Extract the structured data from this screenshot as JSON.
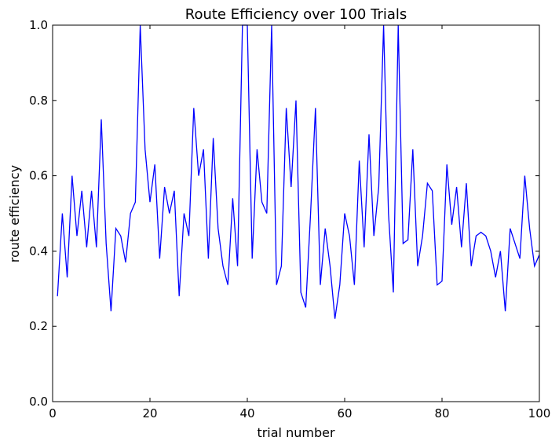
{
  "chart_data": {
    "type": "line",
    "title": "Route Efficiency over 100 Trials",
    "xlabel": "trial number",
    "ylabel": "route efficiency",
    "xlim": [
      0,
      100
    ],
    "ylim": [
      0.0,
      1.0
    ],
    "xticks": [
      0,
      20,
      40,
      60,
      80,
      100
    ],
    "yticks": [
      0.0,
      0.2,
      0.4,
      0.6,
      0.8,
      1.0
    ],
    "xtick_labels": [
      "0",
      "20",
      "40",
      "60",
      "80",
      "100"
    ],
    "ytick_labels": [
      "0.0",
      "0.2",
      "0.4",
      "0.6",
      "0.8",
      "1.0"
    ],
    "grid": false,
    "line_color": "#0000ff",
    "x": [
      1,
      2,
      3,
      4,
      5,
      6,
      7,
      8,
      9,
      10,
      11,
      12,
      13,
      14,
      15,
      16,
      17,
      18,
      19,
      20,
      21,
      22,
      23,
      24,
      25,
      26,
      27,
      28,
      29,
      30,
      31,
      32,
      33,
      34,
      35,
      36,
      37,
      38,
      39,
      40,
      41,
      42,
      43,
      44,
      45,
      46,
      47,
      48,
      49,
      50,
      51,
      52,
      53,
      54,
      55,
      56,
      57,
      58,
      59,
      60,
      61,
      62,
      63,
      64,
      65,
      66,
      67,
      68,
      69,
      70,
      71,
      72,
      73,
      74,
      75,
      76,
      77,
      78,
      79,
      80,
      81,
      82,
      83,
      84,
      85,
      86,
      87,
      88,
      89,
      90,
      91,
      92,
      93,
      94,
      95,
      96,
      97,
      98,
      99,
      100
    ],
    "y": [
      0.28,
      0.5,
      0.33,
      0.6,
      0.44,
      0.56,
      0.41,
      0.56,
      0.41,
      0.75,
      0.42,
      0.24,
      0.46,
      0.44,
      0.37,
      0.5,
      0.53,
      1.0,
      0.67,
      0.53,
      0.63,
      0.38,
      0.57,
      0.5,
      0.56,
      0.28,
      0.5,
      0.44,
      0.78,
      0.6,
      0.67,
      0.38,
      0.7,
      0.46,
      0.36,
      0.31,
      0.54,
      0.36,
      1.0,
      1.0,
      0.38,
      0.67,
      0.53,
      0.5,
      1.0,
      0.31,
      0.36,
      0.78,
      0.57,
      0.8,
      0.29,
      0.25,
      0.5,
      0.78,
      0.31,
      0.46,
      0.36,
      0.22,
      0.31,
      0.5,
      0.44,
      0.31,
      0.64,
      0.41,
      0.71,
      0.44,
      0.57,
      1.0,
      0.5,
      0.29,
      1.0,
      0.42,
      0.43,
      0.67,
      0.36,
      0.44,
      0.58,
      0.56,
      0.31,
      0.32,
      0.63,
      0.47,
      0.57,
      0.41,
      0.58,
      0.36,
      0.44,
      0.45,
      0.44,
      0.4,
      0.33,
      0.4,
      0.24,
      0.46,
      0.42,
      0.38,
      0.6,
      0.46,
      0.36,
      0.39
    ]
  }
}
